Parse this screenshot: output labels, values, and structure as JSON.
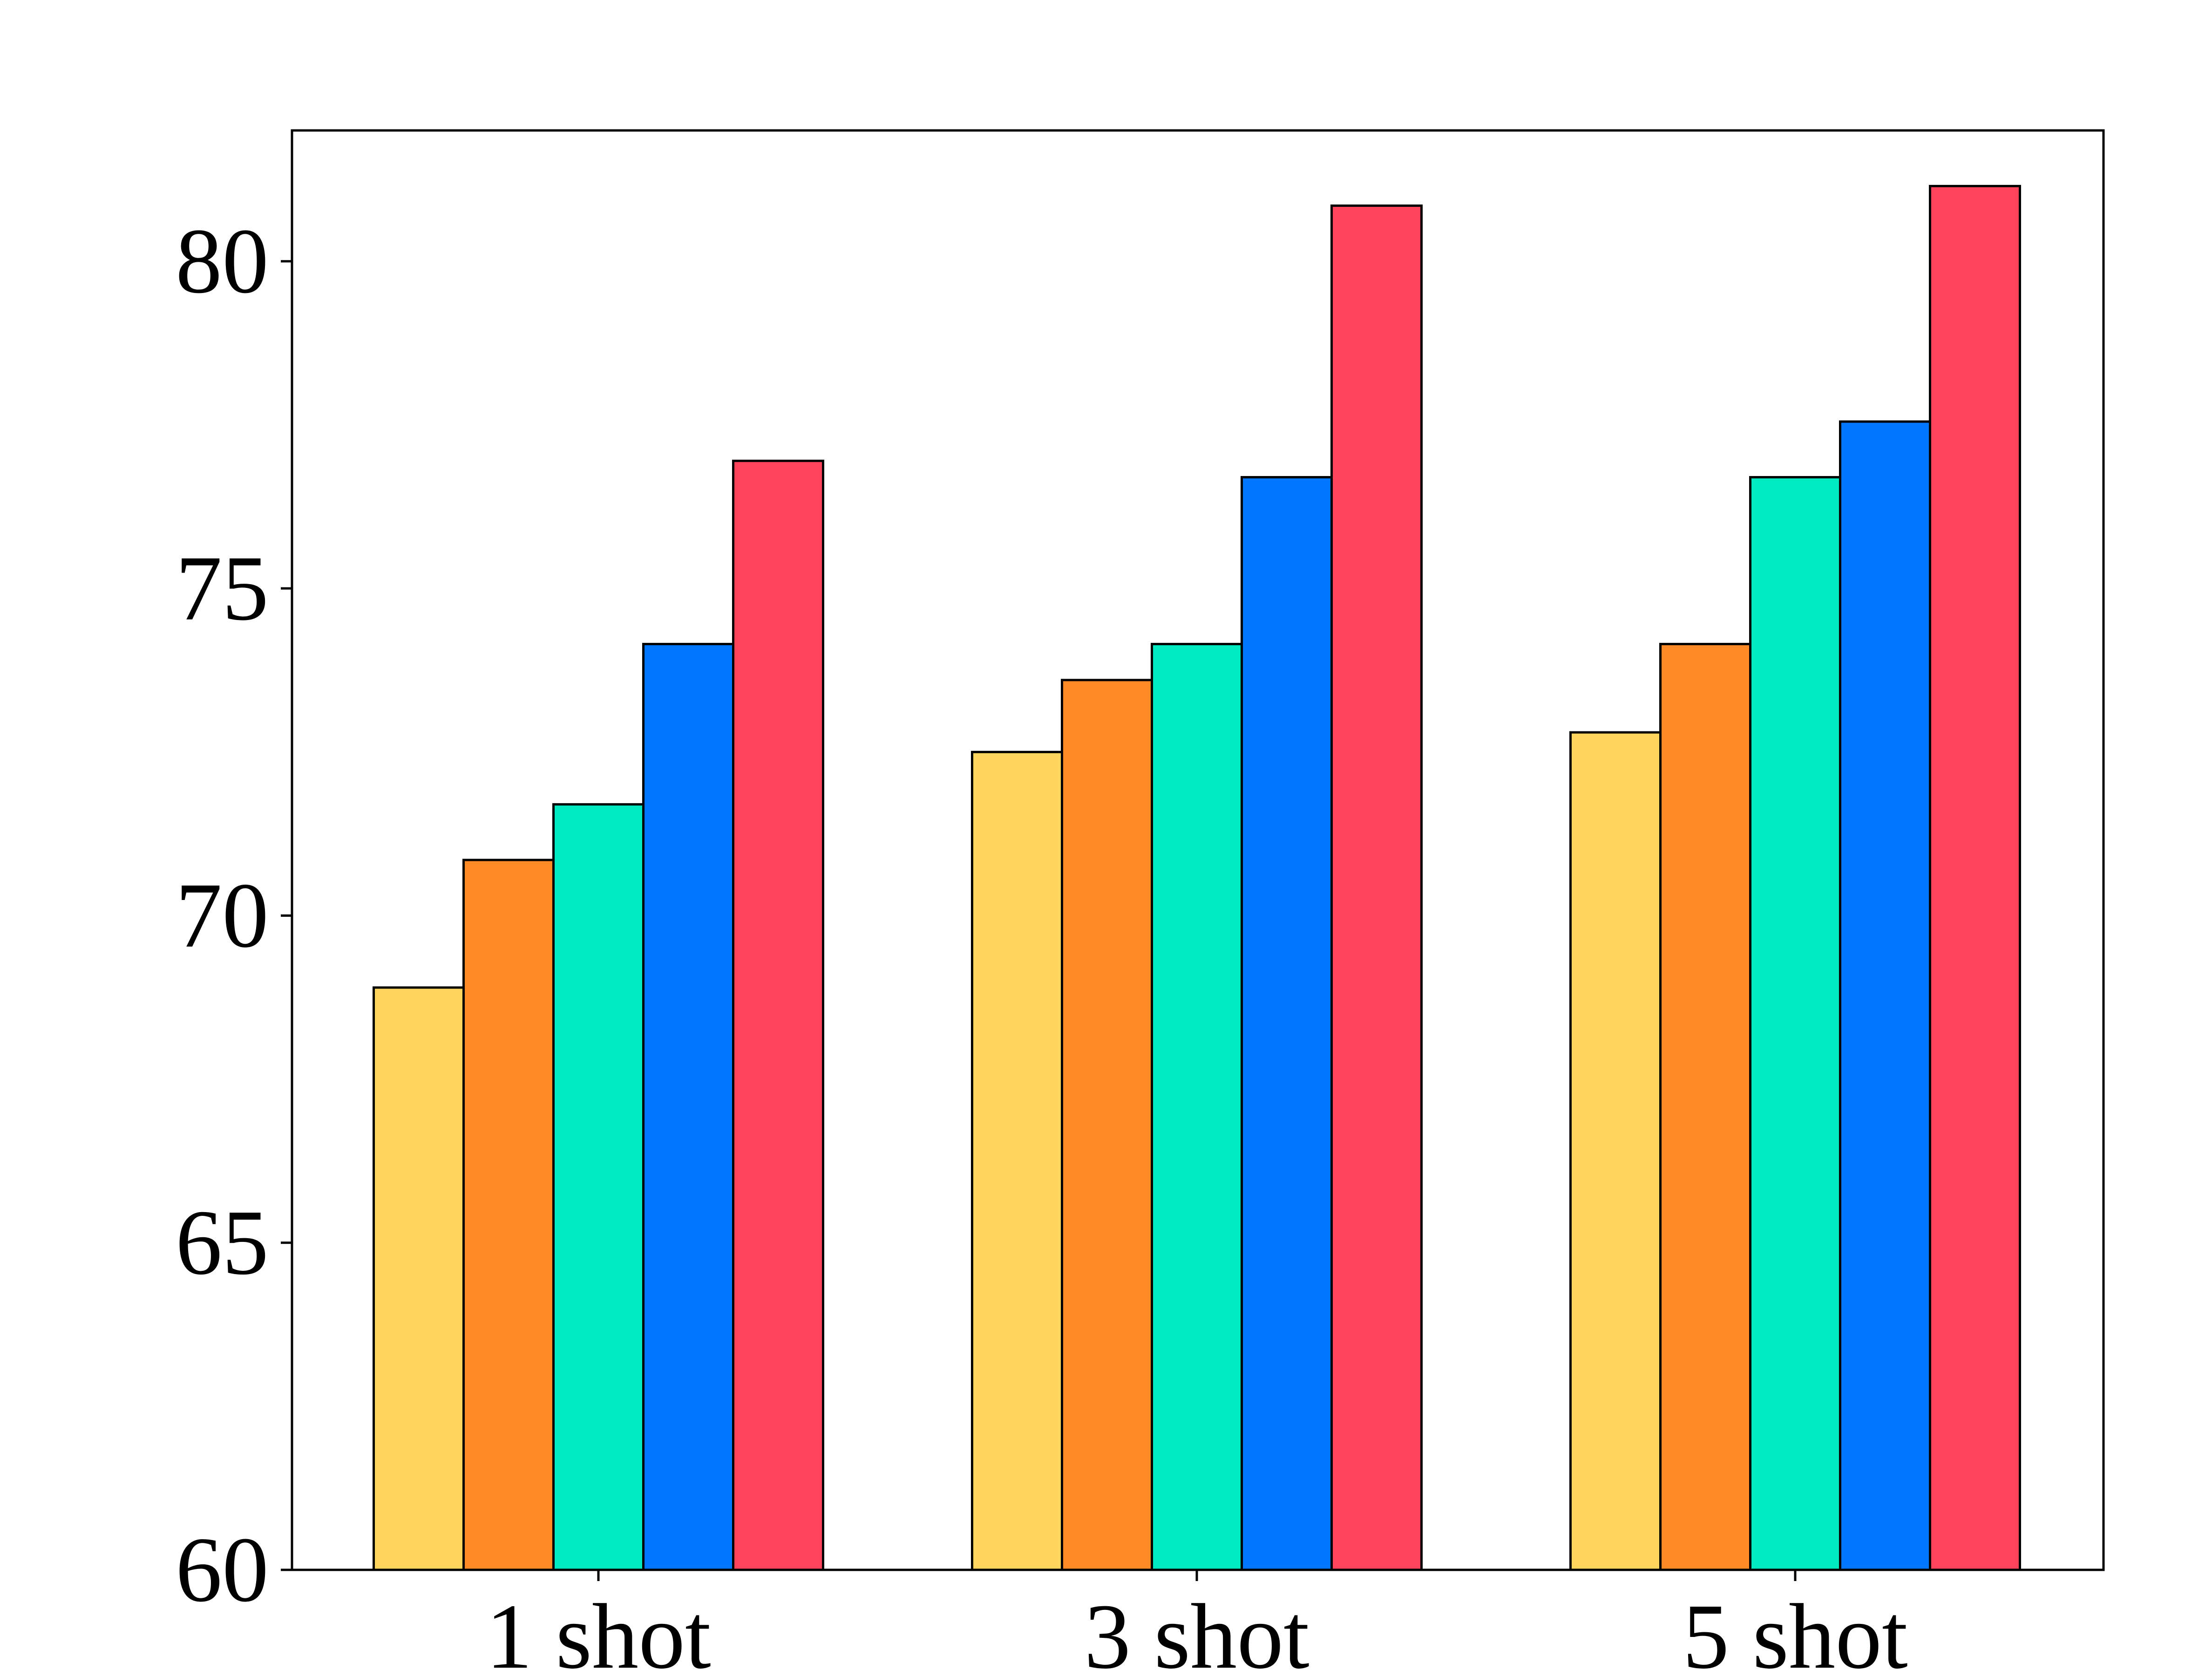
{
  "chart_data": {
    "type": "bar",
    "title": "",
    "xlabel": "",
    "ylabel": "",
    "categories": [
      "1 shot",
      "3 shot",
      "5 shot"
    ],
    "series": [
      {
        "color": "#FFD55E",
        "values": [
          68.9,
          72.5,
          72.8
        ]
      },
      {
        "color": "#FF8A26",
        "values": [
          70.85,
          73.6,
          74.15
        ]
      },
      {
        "color": "#00EAC2",
        "values": [
          71.7,
          74.15,
          76.7
        ]
      },
      {
        "color": "#0077FF",
        "values": [
          74.15,
          76.7,
          77.55
        ]
      },
      {
        "color": "#FF435A",
        "values": [
          76.95,
          80.85,
          81.15
        ]
      }
    ],
    "ylim": [
      60,
      82
    ],
    "yticks": [
      60,
      65,
      70,
      75,
      80
    ],
    "grid": false,
    "legend": "none"
  }
}
